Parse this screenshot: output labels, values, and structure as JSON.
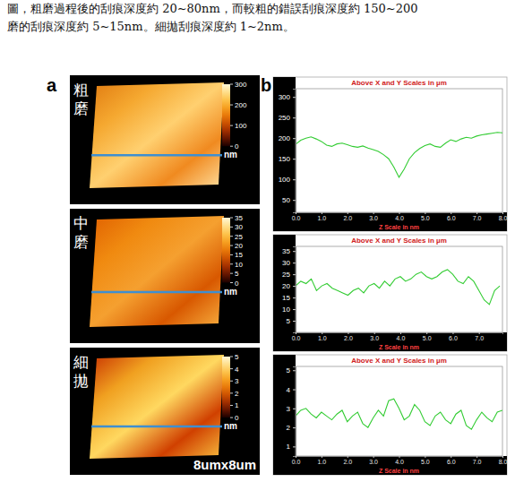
{
  "caption": [
    "圖，粗磨過程後的刮痕深度約 20~80nm，而較粗的錯誤刮痕深度約 150~200",
    "磨的刮痕深度約 5~15nm。細拋刮痕深度約 1~2nm。"
  ],
  "panel_a": {
    "letter": "a",
    "size_label": "8umx8um",
    "images": [
      {
        "label": "粗磨",
        "unit": "nm",
        "colorbar_range": [
          0,
          300
        ],
        "colorbar_ticks": [
          0,
          100,
          200,
          300
        ]
      },
      {
        "label": "中磨",
        "unit": "nm",
        "colorbar_range": [
          0,
          35
        ],
        "colorbar_ticks": [
          0,
          5,
          10,
          15,
          20,
          25,
          30,
          35
        ]
      },
      {
        "label": "細拋",
        "unit": "nm",
        "colorbar_range": [
          0,
          5
        ],
        "colorbar_ticks": [
          0,
          1,
          2,
          3,
          4,
          5
        ]
      }
    ]
  },
  "panel_b_letter": "b",
  "chart_data": [
    {
      "type": "line",
      "title": "Above X and Y Scales in µm",
      "x_label": "Z Scale in nm",
      "color": "#33cc33",
      "x": [
        0,
        0.2,
        0.4,
        0.6,
        0.8,
        1.0,
        1.2,
        1.4,
        1.6,
        1.8,
        2.0,
        2.2,
        2.4,
        2.6,
        2.8,
        3.0,
        3.2,
        3.4,
        3.6,
        3.8,
        4.0,
        4.2,
        4.4,
        4.6,
        4.8,
        5.0,
        5.2,
        5.4,
        5.6,
        5.8,
        6.0,
        6.2,
        6.4,
        6.6,
        6.8,
        7.0,
        7.2,
        7.4,
        7.6,
        7.8,
        8.0
      ],
      "values": [
        185,
        195,
        200,
        203,
        198,
        192,
        183,
        180,
        186,
        188,
        184,
        180,
        178,
        181,
        176,
        172,
        168,
        160,
        150,
        130,
        105,
        125,
        150,
        165,
        175,
        182,
        186,
        180,
        178,
        188,
        196,
        192,
        198,
        202,
        200,
        205,
        208,
        210,
        212,
        214,
        213
      ],
      "xlim": [
        0,
        8
      ],
      "xticks": [
        {
          "value": 0,
          "label": "0.0"
        },
        {
          "value": 1,
          "label": "1.0"
        },
        {
          "value": 2,
          "label": "2.0"
        },
        {
          "value": 3,
          "label": "3.0"
        },
        {
          "value": 4,
          "label": "4.0"
        },
        {
          "value": 5,
          "label": "5.0"
        },
        {
          "value": 6,
          "label": "6.0"
        },
        {
          "value": 7,
          "label": "7.0"
        },
        {
          "value": 8,
          "label": "8.0"
        }
      ],
      "ylim": [
        20,
        320
      ],
      "yticks": [
        50,
        100,
        150,
        200,
        250,
        300
      ]
    },
    {
      "type": "line",
      "title": "Above X and Y Scales in µm",
      "x_label": "Z Scale in nm",
      "color": "#33cc33",
      "x": [
        0,
        0.2,
        0.4,
        0.6,
        0.8,
        1.0,
        1.2,
        1.4,
        1.6,
        1.8,
        2.0,
        2.2,
        2.4,
        2.6,
        2.8,
        3.0,
        3.2,
        3.4,
        3.6,
        3.8,
        4.0,
        4.2,
        4.4,
        4.6,
        4.8,
        5.0,
        5.2,
        5.4,
        5.6,
        5.8,
        6.0,
        6.2,
        6.4,
        6.6,
        6.8,
        7.0,
        7.2,
        7.4,
        7.6,
        7.8
      ],
      "values": [
        20,
        22,
        21,
        23,
        18,
        20,
        21,
        19,
        18,
        17,
        16,
        18,
        19,
        17,
        20,
        21,
        19,
        22,
        20,
        23,
        24,
        22,
        23,
        25,
        26,
        24,
        23,
        24,
        26,
        27,
        25,
        22,
        21,
        24,
        22,
        18,
        14,
        12,
        18,
        20
      ],
      "xlim": [
        0,
        7.9
      ],
      "xticks": [
        {
          "value": 0,
          "label": "0.0"
        },
        {
          "value": 1,
          "label": "1.0"
        },
        {
          "value": 2,
          "label": "2.0"
        },
        {
          "value": 3,
          "label": "3.0"
        },
        {
          "value": 4,
          "label": "4.0"
        },
        {
          "value": 5,
          "label": "5.0"
        },
        {
          "value": 6,
          "label": "6.0"
        },
        {
          "value": 7,
          "label": "7.0"
        }
      ],
      "ylim": [
        0,
        37
      ],
      "yticks": [
        5,
        10,
        15,
        20,
        25,
        30,
        35
      ]
    },
    {
      "type": "line",
      "title": "Above X and Y Scales in µm",
      "x_label": "Z Scale in nm",
      "color": "#33cc33",
      "x": [
        0,
        0.2,
        0.4,
        0.6,
        0.8,
        1.0,
        1.2,
        1.4,
        1.6,
        1.8,
        2.0,
        2.2,
        2.4,
        2.6,
        2.8,
        3.0,
        3.2,
        3.4,
        3.6,
        3.8,
        4.0,
        4.2,
        4.4,
        4.6,
        4.8,
        5.0,
        5.2,
        5.4,
        5.6,
        5.8,
        6.0,
        6.2,
        6.4,
        6.6,
        6.8,
        7.0,
        7.2,
        7.4,
        7.6,
        7.8,
        8.0
      ],
      "values": [
        2.6,
        2.9,
        3.0,
        2.7,
        2.5,
        2.8,
        2.6,
        2.4,
        2.7,
        2.9,
        2.3,
        2.6,
        2.8,
        2.2,
        2.0,
        2.5,
        2.9,
        2.6,
        3.4,
        3.5,
        3.0,
        2.4,
        2.6,
        3.2,
        2.9,
        2.3,
        2.1,
        2.6,
        2.8,
        2.4,
        2.2,
        2.7,
        2.9,
        2.1,
        1.9,
        2.4,
        2.8,
        2.5,
        2.3,
        2.8,
        2.9
      ],
      "xlim": [
        0,
        8
      ],
      "xticks": [
        {
          "value": 0,
          "label": "0.0"
        },
        {
          "value": 1,
          "label": "1.0"
        },
        {
          "value": 2,
          "label": "2.0"
        },
        {
          "value": 3,
          "label": "3.0"
        },
        {
          "value": 4,
          "label": "4.0"
        },
        {
          "value": 5,
          "label": "5.0"
        },
        {
          "value": 6,
          "label": "6.0"
        },
        {
          "value": 7,
          "label": "7.0"
        },
        {
          "value": 8,
          "label": "8.0"
        }
      ],
      "ylim": [
        0.5,
        5.2
      ],
      "yticks": [
        1,
        2,
        3,
        4,
        5
      ]
    }
  ]
}
